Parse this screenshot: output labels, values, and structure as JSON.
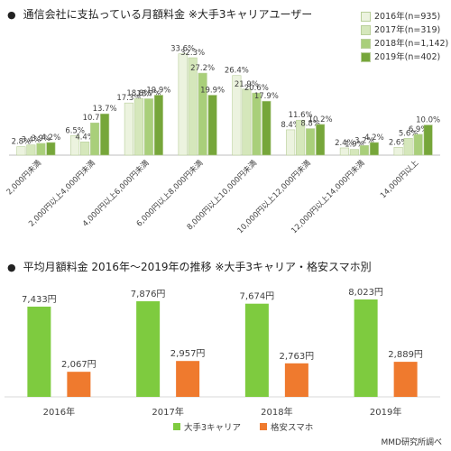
{
  "chart1": {
    "title": "通信会社に支払っている月額料金 ※大手3キャリアユーザー",
    "bullet": "●",
    "legend": [
      {
        "label": "2016年(n=935)",
        "color": "#ecf3df"
      },
      {
        "label": "2017年(n=319)",
        "color": "#d5e7bb"
      },
      {
        "label": "2018年(n=1,142)",
        "color": "#a9cf7a"
      },
      {
        "label": "2019年(n=402)",
        "color": "#76a63a"
      }
    ]
  },
  "chart2": {
    "title": "平均月額料金 2016年～2019年の推移 ※大手3キャリア・格安スマホ別",
    "bullet": "●",
    "legend": [
      {
        "label": "大手3キャリア",
        "color": "#7ecb3f"
      },
      {
        "label": "格安スマホ",
        "color": "#ef7a2e"
      }
    ]
  },
  "source": "MMD研究所調べ",
  "chart_data": [
    {
      "type": "bar",
      "title": "通信会社に支払っている月額料金 ※大手3キャリアユーザー",
      "categories": [
        "2,000円未満",
        "2,000円以上4,000円未満",
        "4,000円以上6,000円未満",
        "6,000円以上8,000円未満",
        "8,000円以上10,000円未満",
        "10,000円以上12,000円未満",
        "12,000円以上14,000円未満",
        "14,000円以上"
      ],
      "series": [
        {
          "name": "2016年(n=935)",
          "color": "#ecf3df",
          "values": [
            2.8,
            6.5,
            17.3,
            33.6,
            26.4,
            8.4,
            2.4,
            2.6
          ],
          "labels": [
            "2.8%",
            "6.5%",
            "17.3%",
            "33.6%",
            "26.4%",
            "8.4%",
            "2.4%",
            "2.6%"
          ]
        },
        {
          "name": "2017年(n=319)",
          "color": "#d5e7bb",
          "values": [
            3.4,
            4.4,
            18.8,
            32.3,
            21.9,
            11.6,
            1.9,
            5.6
          ],
          "labels": [
            "3.4%",
            "4.4%",
            "18.8%",
            "32.3%",
            "21.9%",
            "11.6%",
            "1.9%",
            "5.6%"
          ]
        },
        {
          "name": "2018年(n=1,142)",
          "color": "#a9cf7a",
          "values": [
            3.9,
            10.7,
            18.7,
            27.2,
            20.6,
            8.8,
            3.2,
            6.9
          ],
          "labels": [
            "3.9%",
            "10.7%",
            "18.7%",
            "27.2%",
            "20.6%",
            "8.8%",
            "3.2%",
            "6.9%"
          ]
        },
        {
          "name": "2019年(n=402)",
          "color": "#76a63a",
          "values": [
            4.2,
            13.7,
            19.9,
            19.9,
            17.9,
            10.2,
            4.2,
            10.0
          ],
          "labels": [
            "4.2%",
            "13.7%",
            "19.9%",
            "19.9%",
            "17.9%",
            "10.2%",
            "4.2%",
            "10.0%"
          ]
        }
      ],
      "legend_position": "top-right",
      "grid": false
    },
    {
      "type": "bar",
      "title": "平均月額料金 2016年～2019年の推移 ※大手3キャリア・格安スマホ別",
      "categories": [
        "2016年",
        "2017年",
        "2018年",
        "2019年"
      ],
      "series": [
        {
          "name": "大手3キャリア",
          "color": "#7ecb3f",
          "values": [
            7433,
            7876,
            7674,
            8023
          ],
          "labels": [
            "7,433円",
            "7,876円",
            "7,674円",
            "8,023円"
          ]
        },
        {
          "name": "格安スマホ",
          "color": "#ef7a2e",
          "values": [
            2067,
            2957,
            2763,
            2889
          ],
          "labels": [
            "2,067円",
            "2,957円",
            "2,763円",
            "2,889円"
          ]
        }
      ],
      "legend_position": "bottom",
      "grid": false
    }
  ]
}
